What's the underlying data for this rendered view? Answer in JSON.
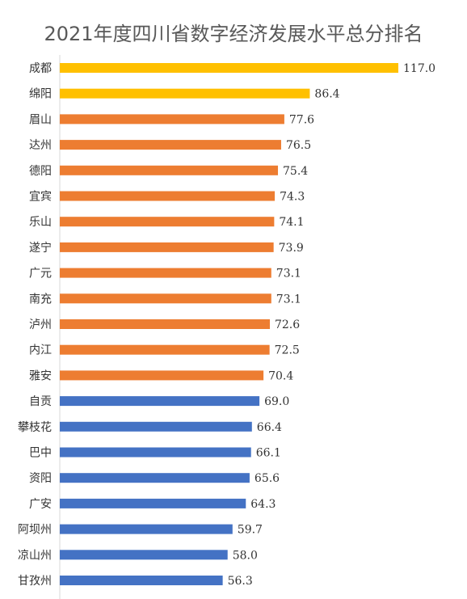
{
  "chart_data": {
    "type": "bar",
    "orientation": "horizontal",
    "title": "2021年度四川省数字经济发展水平总分排名",
    "categories": [
      "成都",
      "绵阳",
      "眉山",
      "达州",
      "德阳",
      "宜宾",
      "乐山",
      "遂宁",
      "广元",
      "南充",
      "泸州",
      "内江",
      "雅安",
      "自贡",
      "攀枝花",
      "巴中",
      "资阳",
      "广安",
      "阿坝州",
      "凉山州",
      "甘孜州"
    ],
    "values": [
      117.0,
      86.4,
      77.6,
      76.5,
      75.4,
      74.3,
      74.1,
      73.9,
      73.1,
      73.1,
      72.6,
      72.5,
      70.4,
      69.0,
      66.4,
      66.1,
      65.6,
      64.3,
      59.7,
      58.0,
      56.3
    ],
    "value_labels": [
      "117.0",
      "86.4",
      "77.6",
      "76.5",
      "75.4",
      "74.3",
      "74.1",
      "73.9",
      "73.1",
      "73.1",
      "72.6",
      "72.5",
      "70.4",
      "69.0",
      "66.4",
      "66.1",
      "65.6",
      "64.3",
      "59.7",
      "58.0",
      "56.3"
    ],
    "colors": [
      "#FFC000",
      "#FFC000",
      "#ED7D31",
      "#ED7D31",
      "#ED7D31",
      "#ED7D31",
      "#ED7D31",
      "#ED7D31",
      "#ED7D31",
      "#ED7D31",
      "#ED7D31",
      "#ED7D31",
      "#ED7D31",
      "#4472C4",
      "#4472C4",
      "#4472C4",
      "#4472C4",
      "#4472C4",
      "#4472C4",
      "#4472C4",
      "#4472C4"
    ],
    "xlim": [
      0,
      117.0
    ],
    "grid": false,
    "legend": "none",
    "axis_color": "#D9D9D9"
  }
}
